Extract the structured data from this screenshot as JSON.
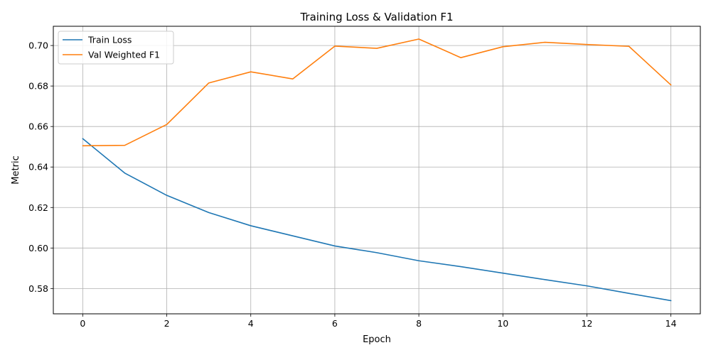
{
  "chart_data": {
    "type": "line",
    "title": "Training Loss & Validation F1",
    "xlabel": "Epoch",
    "ylabel": "Metric",
    "x": [
      0,
      1,
      2,
      3,
      4,
      5,
      6,
      7,
      8,
      9,
      10,
      11,
      12,
      13,
      14
    ],
    "xlim": [
      -0.7,
      14.7
    ],
    "ylim": [
      0.5675,
      0.7095
    ],
    "xticks": [
      0,
      2,
      4,
      6,
      8,
      10,
      12,
      14
    ],
    "yticks": [
      0.58,
      0.6,
      0.62,
      0.64,
      0.66,
      0.68,
      0.7
    ],
    "grid": true,
    "legend_position": "top-left",
    "series": [
      {
        "name": "Train Loss",
        "color": "#1f77b4",
        "values": [
          0.654,
          0.637,
          0.626,
          0.6175,
          0.611,
          0.606,
          0.601,
          0.5977,
          0.5937,
          0.5908,
          0.5876,
          0.5844,
          0.5813,
          0.5776,
          0.574
        ]
      },
      {
        "name": "Val Weighted F1",
        "color": "#ff7f0e",
        "values": [
          0.6505,
          0.6507,
          0.661,
          0.6815,
          0.687,
          0.6835,
          0.6997,
          0.6986,
          0.7032,
          0.694,
          0.6994,
          0.7016,
          0.7005,
          0.6996,
          0.6805
        ]
      }
    ]
  }
}
